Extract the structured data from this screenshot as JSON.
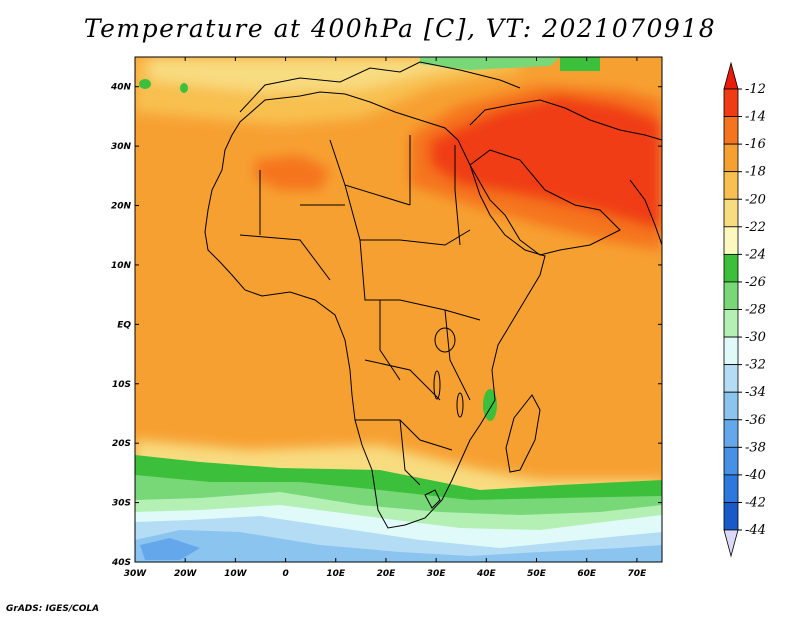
{
  "title": "Temperature at 400hPa [C], VT: 2021070918",
  "credit": "GrADS: IGES/COLA",
  "map": {
    "lon_range": [
      -30,
      75
    ],
    "lat_range": [
      -40,
      45
    ],
    "lon_ticks": [
      "30W",
      "20W",
      "10W",
      "0",
      "10E",
      "20E",
      "30E",
      "40E",
      "50E",
      "60E",
      "70E"
    ],
    "lat_ticks": [
      "40S",
      "30S",
      "20S",
      "10S",
      "EQ",
      "10N",
      "20N",
      "30N",
      "40N"
    ]
  },
  "colorbar": {
    "labels": [
      "-12",
      "-14",
      "-16",
      "-18",
      "-20",
      "-22",
      "-24",
      "-26",
      "-28",
      "-30",
      "-32",
      "-34",
      "-36",
      "-38",
      "-40",
      "-42",
      "-44"
    ],
    "colors": [
      "#f03c14",
      "#f5751e",
      "#f7a032",
      "#f8c050",
      "#f8dc80",
      "#fdf8c0",
      "#3cc03c",
      "#78d878",
      "#b4f0b4",
      "#e0fafa",
      "#b4dcf5",
      "#8cc4f0",
      "#64a8eb",
      "#4690e6",
      "#2c78dc",
      "#1a5ac8",
      "#0a2896"
    ],
    "over_color": "#e81c08",
    "under_color": "#dcd8f8"
  }
}
